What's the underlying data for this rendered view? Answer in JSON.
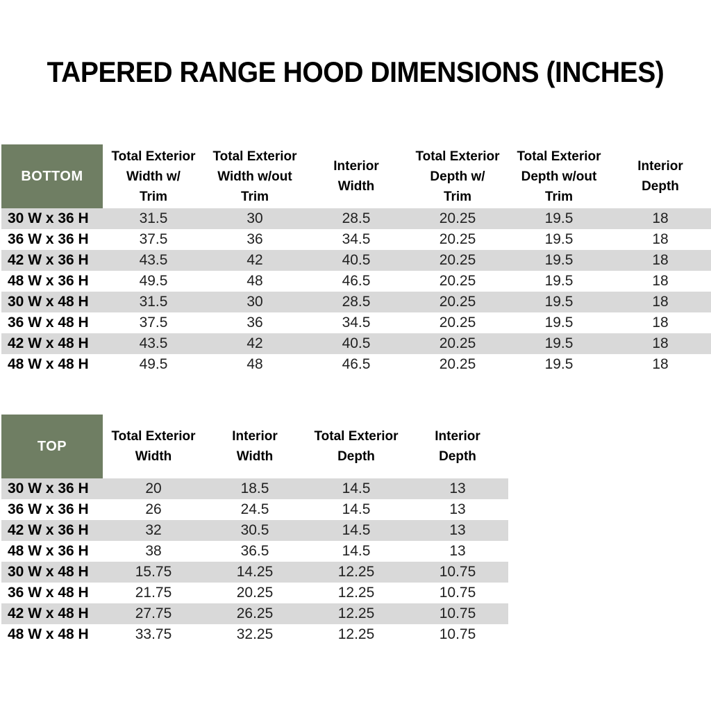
{
  "title": "TAPERED RANGE HOOD DIMENSIONS (INCHES)",
  "colors": {
    "header_green": "#6F7E63",
    "stripe_gray": "#D9D9D9",
    "corner_text": "#FFFFFF",
    "body_text": "#212121"
  },
  "bottom_table": {
    "corner_label": "BOTTOM",
    "columns": [
      "Total Exterior\nWidth w/\nTrim",
      "Total Exterior\nWidth w/out\nTrim",
      "Interior\nWidth",
      "Total Exterior\nDepth w/\nTrim",
      "Total Exterior\nDepth w/out\nTrim",
      "Interior\nDepth"
    ],
    "rows": [
      {
        "label": "30 W x 36 H",
        "values": [
          "31.5",
          "30",
          "28.5",
          "20.25",
          "19.5",
          "18"
        ]
      },
      {
        "label": "36 W x 36 H",
        "values": [
          "37.5",
          "36",
          "34.5",
          "20.25",
          "19.5",
          "18"
        ]
      },
      {
        "label": "42 W x 36 H",
        "values": [
          "43.5",
          "42",
          "40.5",
          "20.25",
          "19.5",
          "18"
        ]
      },
      {
        "label": "48 W x 36 H",
        "values": [
          "49.5",
          "48",
          "46.5",
          "20.25",
          "19.5",
          "18"
        ]
      },
      {
        "label": "30 W x 48 H",
        "values": [
          "31.5",
          "30",
          "28.5",
          "20.25",
          "19.5",
          "18"
        ]
      },
      {
        "label": "36 W x 48 H",
        "values": [
          "37.5",
          "36",
          "34.5",
          "20.25",
          "19.5",
          "18"
        ]
      },
      {
        "label": "42 W x 48 H",
        "values": [
          "43.5",
          "42",
          "40.5",
          "20.25",
          "19.5",
          "18"
        ]
      },
      {
        "label": "48 W x 48 H",
        "values": [
          "49.5",
          "48",
          "46.5",
          "20.25",
          "19.5",
          "18"
        ]
      }
    ]
  },
  "top_table": {
    "corner_label": "TOP",
    "columns": [
      "Total Exterior\nWidth",
      "Interior\nWidth",
      "Total Exterior\nDepth",
      "Interior\nDepth"
    ],
    "rows": [
      {
        "label": "30 W x 36 H",
        "values": [
          "20",
          "18.5",
          "14.5",
          "13"
        ]
      },
      {
        "label": "36 W x 36 H",
        "values": [
          "26",
          "24.5",
          "14.5",
          "13"
        ]
      },
      {
        "label": "42 W x 36 H",
        "values": [
          "32",
          "30.5",
          "14.5",
          "13"
        ]
      },
      {
        "label": "48 W x 36 H",
        "values": [
          "38",
          "36.5",
          "14.5",
          "13"
        ]
      },
      {
        "label": "30 W x 48 H",
        "values": [
          "15.75",
          "14.25",
          "12.25",
          "10.75"
        ]
      },
      {
        "label": "36 W x 48 H",
        "values": [
          "21.75",
          "20.25",
          "12.25",
          "10.75"
        ]
      },
      {
        "label": "42 W x 48 H",
        "values": [
          "27.75",
          "26.25",
          "12.25",
          "10.75"
        ]
      },
      {
        "label": "48 W x 48 H",
        "values": [
          "33.75",
          "32.25",
          "12.25",
          "10.75"
        ]
      }
    ]
  }
}
